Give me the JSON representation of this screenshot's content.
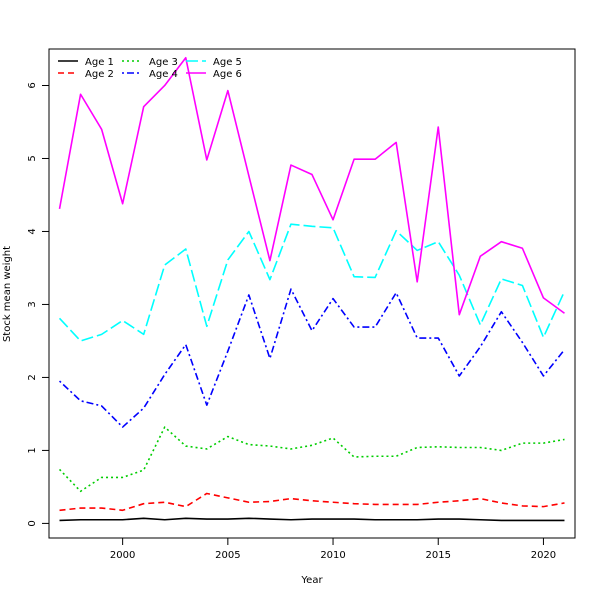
{
  "chart_data": {
    "type": "line",
    "title": "",
    "xlabel": "Year",
    "ylabel": "Stock mean weight",
    "xlim": [
      1996.5,
      2021.5
    ],
    "ylim": [
      -0.2,
      6.5
    ],
    "x_ticks": [
      2000,
      2005,
      2010,
      2015,
      2020
    ],
    "y_ticks": [
      0,
      1,
      2,
      3,
      4,
      5,
      6
    ],
    "grid": false,
    "legend_position": "top-left",
    "x": [
      1997,
      1998,
      1999,
      2000,
      2001,
      2002,
      2003,
      2004,
      2005,
      2006,
      2007,
      2008,
      2009,
      2010,
      2011,
      2012,
      2013,
      2014,
      2015,
      2016,
      2017,
      2018,
      2019,
      2020,
      2021
    ],
    "series": [
      {
        "name": "Age 1",
        "color": "#000000",
        "dash": "solid",
        "values": [
          0.04,
          0.05,
          0.05,
          0.05,
          0.07,
          0.05,
          0.07,
          0.06,
          0.06,
          0.07,
          0.06,
          0.05,
          0.06,
          0.06,
          0.06,
          0.05,
          0.05,
          0.05,
          0.06,
          0.06,
          0.05,
          0.04,
          0.04,
          0.04,
          0.04
        ]
      },
      {
        "name": "Age 2",
        "color": "#ff0000",
        "dash": "dashed",
        "values": [
          0.18,
          0.21,
          0.21,
          0.18,
          0.27,
          0.29,
          0.23,
          0.41,
          0.35,
          0.29,
          0.3,
          0.34,
          0.31,
          0.29,
          0.27,
          0.26,
          0.26,
          0.26,
          0.29,
          0.31,
          0.34,
          0.28,
          0.24,
          0.23,
          0.28
        ]
      },
      {
        "name": "Age 3",
        "color": "#00cd00",
        "dash": "dotted",
        "values": [
          0.74,
          0.44,
          0.63,
          0.63,
          0.73,
          1.32,
          1.06,
          1.02,
          1.19,
          1.08,
          1.06,
          1.02,
          1.07,
          1.17,
          0.91,
          0.92,
          0.92,
          1.04,
          1.05,
          1.04,
          1.04,
          1.0,
          1.1,
          1.1,
          1.15
        ]
      },
      {
        "name": "Age 4",
        "color": "#0000ff",
        "dash": "dotdash",
        "values": [
          1.95,
          1.68,
          1.61,
          1.32,
          1.58,
          2.04,
          2.45,
          1.62,
          2.36,
          3.13,
          2.26,
          3.21,
          2.64,
          3.08,
          2.69,
          2.69,
          3.16,
          2.54,
          2.54,
          2.02,
          2.42,
          2.9,
          2.48,
          2.02,
          2.38
        ]
      },
      {
        "name": "Age 5",
        "color": "#00ffff",
        "dash": "longdash",
        "values": [
          2.81,
          2.5,
          2.59,
          2.78,
          2.59,
          3.54,
          3.76,
          2.7,
          3.61,
          4.0,
          3.34,
          4.1,
          4.07,
          4.05,
          3.38,
          3.37,
          4.01,
          3.74,
          3.86,
          3.4,
          2.72,
          3.35,
          3.26,
          2.55,
          3.18
        ]
      },
      {
        "name": "Age 6",
        "color": "#ff00ff",
        "dash": "solid",
        "values": [
          4.31,
          5.88,
          5.4,
          4.38,
          5.71,
          6.0,
          6.38,
          4.98,
          5.93,
          4.76,
          3.6,
          4.91,
          4.78,
          4.16,
          4.99,
          4.99,
          5.22,
          3.31,
          5.43,
          2.86,
          3.66,
          3.86,
          3.77,
          3.09,
          2.88
        ]
      }
    ]
  }
}
